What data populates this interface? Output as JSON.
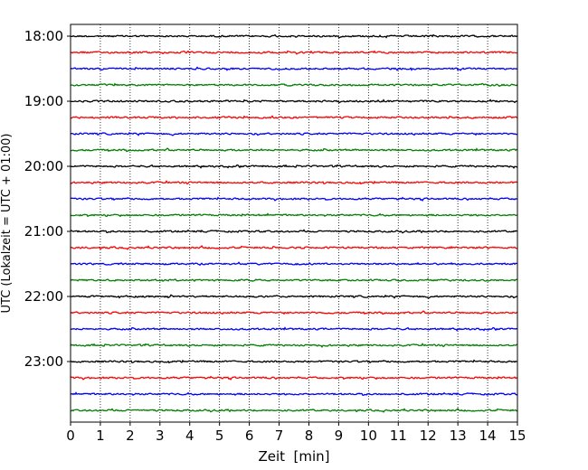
{
  "chart_data": {
    "type": "line",
    "title": "",
    "xlabel": "Zeit  [min]",
    "ylabel": "UTC (Lokalzeit = UTC + 01:00)",
    "xlim": [
      0,
      15
    ],
    "x_ticks": [
      "0",
      "1",
      "2",
      "3",
      "4",
      "5",
      "6",
      "7",
      "8",
      "9",
      "10",
      "11",
      "12",
      "13",
      "14",
      "15"
    ],
    "y_tick_labels": [
      "18:00",
      "19:00",
      "20:00",
      "21:00",
      "22:00",
      "23:00"
    ],
    "trace_start": "18:00",
    "trace_interval_min": 15,
    "trace_count": 24,
    "trace_colors": [
      "#000000",
      "#ff0000",
      "#0000ff",
      "#008000"
    ],
    "vertical_grid": true,
    "grid_style": "dotted",
    "legend": "none"
  }
}
